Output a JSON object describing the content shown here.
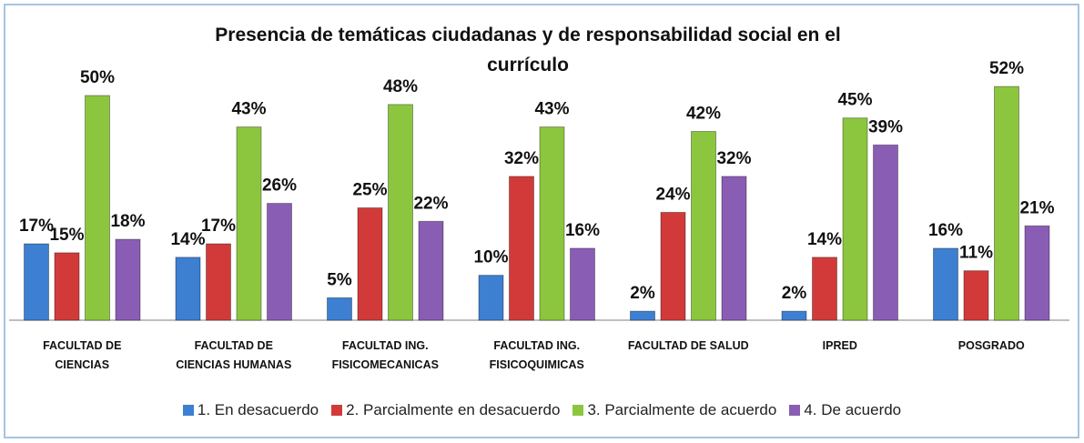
{
  "chart_data": {
    "type": "bar",
    "title": "Presencia de temáticas ciudadanas y de responsabilidad social en  el\ncurrículo",
    "categories": [
      "FACULTAD DE\nCIENCIAS",
      "FACULTAD DE\nCIENCIAS HUMANAS",
      "FACULTAD ING.\nFISICOMECANICAS",
      "FACULTAD ING.\nFISICOQUIMICAS",
      "FACULTAD DE SALUD",
      "IPRED",
      "POSGRADO"
    ],
    "series": [
      {
        "name": "1. En desacuerdo",
        "color": "#3d7fd0",
        "values": [
          17,
          14,
          5,
          10,
          2,
          2,
          16
        ],
        "value_labels": [
          "17%",
          "14%",
          "5%",
          "10%",
          "2%",
          "2%",
          "16%"
        ]
      },
      {
        "name": "2. Parcialmente en desacuerdo",
        "color": "#d23a3a",
        "values": [
          15,
          17,
          25,
          32,
          24,
          14,
          11
        ],
        "value_labels": [
          "15%",
          "17%",
          "25%",
          "32%",
          "24%",
          "14%",
          "11%"
        ]
      },
      {
        "name": "3. Parcialmente de acuerdo",
        "color": "#8cc63e",
        "values": [
          50,
          43,
          48,
          43,
          42,
          45,
          52
        ],
        "value_labels": [
          "50%",
          "43%",
          "48%",
          "43%",
          "42%",
          "45%",
          "52%"
        ]
      },
      {
        "name": "4. De acuerdo",
        "color": "#8a5db5",
        "values": [
          18,
          26,
          22,
          16,
          32,
          39,
          21
        ],
        "value_labels": [
          "18%",
          "26%",
          "22%",
          "16%",
          "32%",
          "39%",
          "21%"
        ]
      }
    ],
    "legend": "bottom"
  }
}
